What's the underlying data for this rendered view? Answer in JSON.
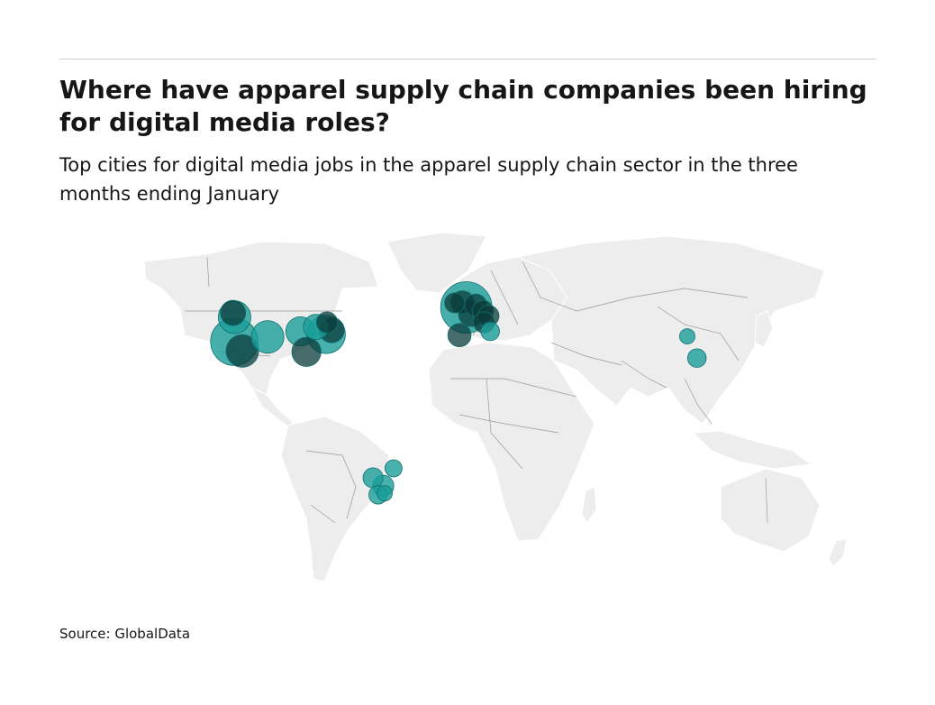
{
  "header": {
    "title": "Where have apparel supply chain companies been hiring for digital media roles?",
    "subtitle": "Top cities for digital media jobs in the apparel supply chain sector in the three months ending January"
  },
  "footer": {
    "source": "Source: GlobalData"
  },
  "map": {
    "projection": "world",
    "land_color": "#ededed",
    "border_color": "#9a9a9a",
    "bubble_color": "#1a9e9a",
    "bubble_overlap_color": "#0b3b3a",
    "bubbles": [
      {
        "lon": -122.4,
        "lat": 37.8,
        "size": 5,
        "overlap": false
      },
      {
        "lon": -118.2,
        "lat": 34.1,
        "size": 2,
        "overlap": true
      },
      {
        "lon": -122.3,
        "lat": 47.6,
        "size": 2,
        "overlap": false
      },
      {
        "lon": -123.1,
        "lat": 49.3,
        "size": 1,
        "overlap": true
      },
      {
        "lon": -104.9,
        "lat": 39.7,
        "size": 2,
        "overlap": false
      },
      {
        "lon": -87.6,
        "lat": 41.9,
        "size": 1.5,
        "overlap": false
      },
      {
        "lon": -74.0,
        "lat": 40.7,
        "size": 3,
        "overlap": false
      },
      {
        "lon": -84.4,
        "lat": 33.7,
        "size": 1.5,
        "overlap": true
      },
      {
        "lon": -71.1,
        "lat": 42.4,
        "size": 1,
        "overlap": true
      },
      {
        "lon": -79.4,
        "lat": 43.7,
        "size": 1,
        "overlap": false
      },
      {
        "lon": -73.6,
        "lat": 45.5,
        "size": 0.6,
        "overlap": true
      },
      {
        "lon": -0.1,
        "lat": 51.5,
        "size": 6,
        "overlap": false
      },
      {
        "lon": 2.35,
        "lat": 48.9,
        "size": 1,
        "overlap": true
      },
      {
        "lon": -3.7,
        "lat": 40.4,
        "size": 0.8,
        "overlap": true
      },
      {
        "lon": -2.2,
        "lat": 53.5,
        "size": 0.8,
        "overlap": true
      },
      {
        "lon": 4.9,
        "lat": 52.4,
        "size": 0.7,
        "overlap": true
      },
      {
        "lon": 8.7,
        "lat": 50.1,
        "size": 0.6,
        "overlap": true
      },
      {
        "lon": 11.6,
        "lat": 48.1,
        "size": 0.6,
        "overlap": true
      },
      {
        "lon": 9.2,
        "lat": 45.5,
        "size": 0.6,
        "overlap": true
      },
      {
        "lon": 12.5,
        "lat": 41.9,
        "size": 0.4,
        "overlap": false
      },
      {
        "lon": -6.3,
        "lat": 53.3,
        "size": 0.5,
        "overlap": true
      },
      {
        "lon": 116.4,
        "lat": 39.9,
        "size": 0.2,
        "overlap": false
      },
      {
        "lon": 121.5,
        "lat": 31.2,
        "size": 0.4,
        "overlap": false
      },
      {
        "lon": -38.5,
        "lat": -12.9,
        "size": 0.3,
        "overlap": false
      },
      {
        "lon": -43.9,
        "lat": -19.9,
        "size": 0.6,
        "overlap": false
      },
      {
        "lon": -49.3,
        "lat": -16.7,
        "size": 0.5,
        "overlap": false
      },
      {
        "lon": -46.6,
        "lat": -23.5,
        "size": 0.4,
        "overlap": false
      },
      {
        "lon": -43.2,
        "lat": -22.9,
        "size": 0.2,
        "overlap": false
      }
    ]
  }
}
